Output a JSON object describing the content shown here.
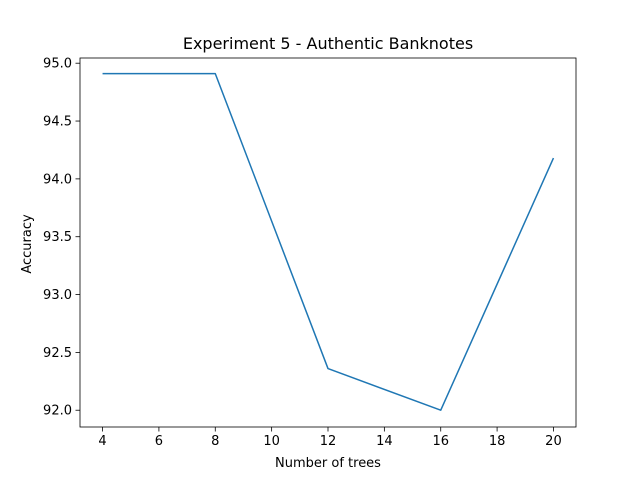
{
  "chart_data": {
    "type": "line",
    "title": "Experiment 5 - Authentic Banknotes",
    "xlabel": "Number of trees",
    "ylabel": "Accuracy",
    "xlim": [
      3.2,
      20.8
    ],
    "ylim": [
      91.855,
      95.045
    ],
    "x_ticks": [
      4,
      6,
      8,
      10,
      12,
      14,
      16,
      18,
      20
    ],
    "y_ticks": [
      92.0,
      92.5,
      93.0,
      93.5,
      94.0,
      94.5,
      95.0
    ],
    "grid": false,
    "series": [
      {
        "color": "#1f77b4",
        "x": [
          4,
          8,
          12,
          16,
          20
        ],
        "y": [
          94.91,
          94.91,
          92.36,
          92.0,
          94.18
        ]
      }
    ]
  }
}
